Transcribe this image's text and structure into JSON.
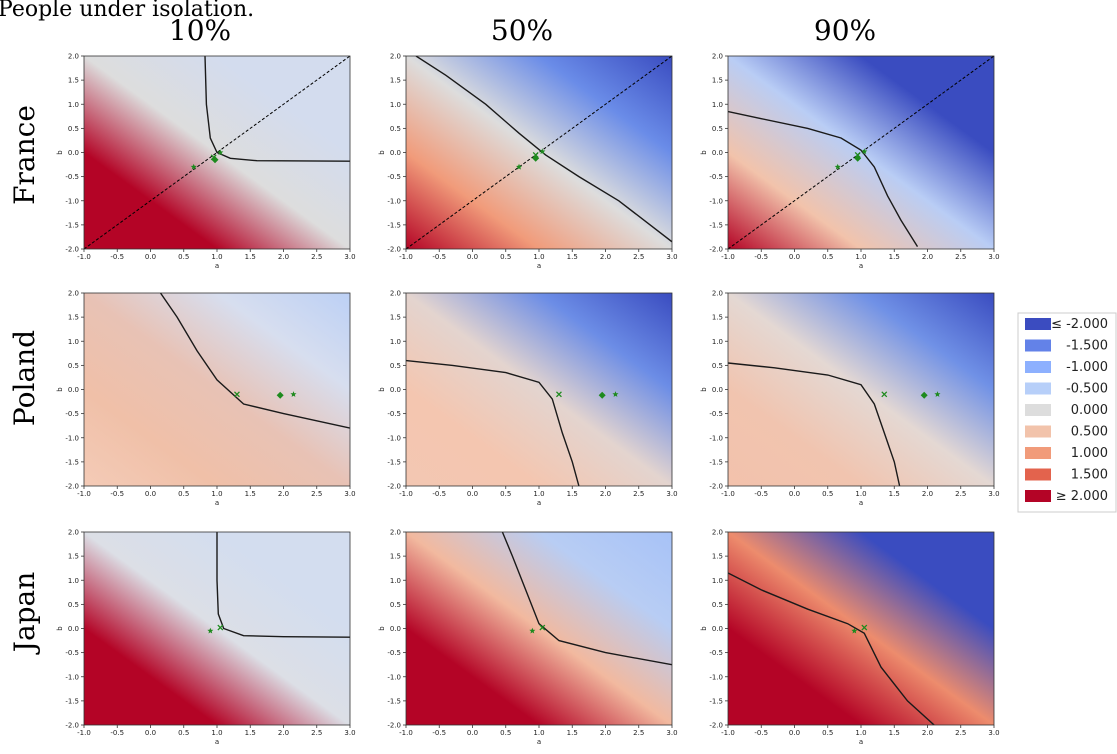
{
  "figure": {
    "heading": "People under isolation.",
    "columns": [
      "10%",
      "50%",
      "90%"
    ],
    "rows": [
      "France",
      "Poland",
      "Japan"
    ],
    "colors": {
      "min": "#3a4cc0",
      "max": "#b40426",
      "mid": "#dddddd",
      "contour": "#1a1a1a",
      "diagonal": "#000000",
      "marker": "#1e8a1e"
    }
  },
  "legend": {
    "items": [
      {
        "label": "≤ -2.000",
        "color": "#3b4cc0"
      },
      {
        "label": "-1.500",
        "color": "#6382e8"
      },
      {
        "label": "-1.000",
        "color": "#8db0fe"
      },
      {
        "label": "-0.500",
        "color": "#b7cff9"
      },
      {
        "label": "0.000",
        "color": "#dddddd"
      },
      {
        "label": "0.500",
        "color": "#f2c3ab"
      },
      {
        "label": "1.000",
        "color": "#f19b7a"
      },
      {
        "label": "1.500",
        "color": "#e3634d"
      },
      {
        "label": "≥ 2.000",
        "color": "#b40426"
      }
    ]
  },
  "chart_data": [
    {
      "type": "heatmap",
      "row": "France",
      "column": "10%",
      "xlabel": "a",
      "ylabel": "b",
      "xlim": [
        -1,
        3
      ],
      "ylim": [
        -2,
        2
      ],
      "x_ticks": [
        "-1.0",
        "-0.5",
        "0.0",
        "0.5",
        "1.0",
        "1.5",
        "2.0",
        "2.5",
        "3.0"
      ],
      "y_ticks": [
        "-2.0",
        "-1.5",
        "-1.0",
        "-0.5",
        "0.0",
        "0.5",
        "1.0",
        "1.5",
        "2.0"
      ],
      "diagonal": true,
      "contour": [
        [
          0.82,
          2.0
        ],
        [
          0.84,
          1.0
        ],
        [
          0.9,
          0.3
        ],
        [
          1.0,
          0.0
        ],
        [
          1.2,
          -0.12
        ],
        [
          1.6,
          -0.17
        ],
        [
          3.0,
          -0.18
        ]
      ],
      "markers": [
        {
          "x": 0.65,
          "y": -0.3,
          "symbol": "star"
        },
        {
          "x": 0.95,
          "y": -0.1,
          "symbol": "x"
        },
        {
          "x": 0.97,
          "y": -0.15,
          "symbol": "diamond"
        },
        {
          "x": 1.05,
          "y": 0.0,
          "symbol": "star"
        }
      ]
    },
    {
      "type": "heatmap",
      "row": "France",
      "column": "50%",
      "xlabel": "a",
      "ylabel": "b",
      "xlim": [
        -1,
        3
      ],
      "ylim": [
        -2,
        2
      ],
      "x_ticks": [
        "-1.0",
        "-0.5",
        "0.0",
        "0.5",
        "1.0",
        "1.5",
        "2.0",
        "2.5",
        "3.0"
      ],
      "y_ticks": [
        "-2.0",
        "-1.5",
        "-1.0",
        "-0.5",
        "0.0",
        "0.5",
        "1.0",
        "1.5",
        "2.0"
      ],
      "diagonal": true,
      "contour": [
        [
          -0.85,
          2.0
        ],
        [
          -0.4,
          1.6
        ],
        [
          0.2,
          1.0
        ],
        [
          0.7,
          0.4
        ],
        [
          1.1,
          -0.05
        ],
        [
          1.6,
          -0.5
        ],
        [
          2.2,
          -1.0
        ],
        [
          3.0,
          -1.85
        ]
      ],
      "markers": [
        {
          "x": 0.7,
          "y": -0.3,
          "symbol": "star"
        },
        {
          "x": 0.95,
          "y": -0.05,
          "symbol": "x"
        },
        {
          "x": 0.95,
          "y": -0.12,
          "symbol": "diamond"
        },
        {
          "x": 1.05,
          "y": 0.02,
          "symbol": "star"
        }
      ]
    },
    {
      "type": "heatmap",
      "row": "France",
      "column": "90%",
      "xlabel": "a",
      "ylabel": "b",
      "xlim": [
        -1,
        3
      ],
      "ylim": [
        -2,
        2
      ],
      "x_ticks": [
        "-1.0",
        "-0.5",
        "0.0",
        "0.5",
        "1.0",
        "1.5",
        "2.0",
        "2.5",
        "3.0"
      ],
      "y_ticks": [
        "-2.0",
        "-1.5",
        "-1.0",
        "-0.5",
        "0.0",
        "0.5",
        "1.0",
        "1.5",
        "2.0"
      ],
      "diagonal": true,
      "contour": [
        [
          -1.0,
          0.85
        ],
        [
          -0.5,
          0.7
        ],
        [
          0.2,
          0.5
        ],
        [
          0.7,
          0.3
        ],
        [
          1.0,
          0.05
        ],
        [
          1.2,
          -0.3
        ],
        [
          1.4,
          -0.9
        ],
        [
          1.6,
          -1.4
        ],
        [
          1.85,
          -1.95
        ]
      ],
      "markers": [
        {
          "x": 0.65,
          "y": -0.3,
          "symbol": "star"
        },
        {
          "x": 0.95,
          "y": -0.05,
          "symbol": "x"
        },
        {
          "x": 0.95,
          "y": -0.12,
          "symbol": "diamond"
        },
        {
          "x": 1.05,
          "y": 0.02,
          "symbol": "star"
        }
      ]
    },
    {
      "type": "heatmap",
      "row": "Poland",
      "column": "10%",
      "xlabel": "a",
      "ylabel": "b",
      "xlim": [
        -1,
        3
      ],
      "ylim": [
        -2,
        2
      ],
      "x_ticks": [
        "-1.0",
        "-0.5",
        "0.0",
        "0.5",
        "1.0",
        "1.5",
        "2.0",
        "2.5",
        "3.0"
      ],
      "y_ticks": [
        "-2.0",
        "-1.5",
        "-1.0",
        "-0.5",
        "0.0",
        "0.5",
        "1.0",
        "1.5",
        "2.0"
      ],
      "diagonal": false,
      "contour": [
        [
          0.15,
          2.0
        ],
        [
          0.4,
          1.5
        ],
        [
          0.7,
          0.8
        ],
        [
          1.0,
          0.2
        ],
        [
          1.4,
          -0.3
        ],
        [
          2.0,
          -0.5
        ],
        [
          3.0,
          -0.8
        ]
      ],
      "markers": [
        {
          "x": 1.3,
          "y": -0.1,
          "symbol": "x"
        },
        {
          "x": 1.95,
          "y": -0.12,
          "symbol": "diamond"
        },
        {
          "x": 2.15,
          "y": -0.1,
          "symbol": "star"
        }
      ]
    },
    {
      "type": "heatmap",
      "row": "Poland",
      "column": "50%",
      "xlabel": "a",
      "ylabel": "b",
      "xlim": [
        -1,
        3
      ],
      "ylim": [
        -2,
        2
      ],
      "x_ticks": [
        "-1.0",
        "-0.5",
        "0.0",
        "0.5",
        "1.0",
        "1.5",
        "2.0",
        "2.5",
        "3.0"
      ],
      "y_ticks": [
        "-2.0",
        "-1.5",
        "-1.0",
        "-0.5",
        "0.0",
        "0.5",
        "1.0",
        "1.5",
        "2.0"
      ],
      "diagonal": false,
      "contour": [
        [
          -1.0,
          0.6
        ],
        [
          -0.3,
          0.5
        ],
        [
          0.5,
          0.35
        ],
        [
          1.0,
          0.15
        ],
        [
          1.2,
          -0.2
        ],
        [
          1.35,
          -0.9
        ],
        [
          1.5,
          -1.5
        ],
        [
          1.6,
          -2.0
        ]
      ],
      "markers": [
        {
          "x": 1.3,
          "y": -0.1,
          "symbol": "x"
        },
        {
          "x": 1.95,
          "y": -0.12,
          "symbol": "diamond"
        },
        {
          "x": 2.15,
          "y": -0.1,
          "symbol": "star"
        }
      ]
    },
    {
      "type": "heatmap",
      "row": "Poland",
      "column": "90%",
      "xlabel": "a",
      "ylabel": "b",
      "xlim": [
        -1,
        3
      ],
      "ylim": [
        -2,
        2
      ],
      "x_ticks": [
        "-1.0",
        "-0.5",
        "0.0",
        "0.5",
        "1.0",
        "1.5",
        "2.0",
        "2.5",
        "3.0"
      ],
      "y_ticks": [
        "-2.0",
        "-1.5",
        "-1.0",
        "-0.5",
        "0.0",
        "0.5",
        "1.0",
        "1.5",
        "2.0"
      ],
      "diagonal": false,
      "contour": [
        [
          -1.0,
          0.55
        ],
        [
          -0.3,
          0.45
        ],
        [
          0.5,
          0.3
        ],
        [
          1.0,
          0.1
        ],
        [
          1.2,
          -0.3
        ],
        [
          1.35,
          -0.9
        ],
        [
          1.5,
          -1.5
        ],
        [
          1.58,
          -2.0
        ]
      ],
      "markers": [
        {
          "x": 1.35,
          "y": -0.1,
          "symbol": "x"
        },
        {
          "x": 1.95,
          "y": -0.12,
          "symbol": "diamond"
        },
        {
          "x": 2.15,
          "y": -0.1,
          "symbol": "star"
        }
      ]
    },
    {
      "type": "heatmap",
      "row": "Japan",
      "column": "10%",
      "xlabel": "a",
      "ylabel": "b",
      "xlim": [
        -1,
        3
      ],
      "ylim": [
        -2,
        2
      ],
      "x_ticks": [
        "-1.0",
        "-0.5",
        "0.0",
        "0.5",
        "1.0",
        "1.5",
        "2.0",
        "2.5",
        "3.0"
      ],
      "y_ticks": [
        "-2.0",
        "-1.5",
        "-1.0",
        "-0.5",
        "0.0",
        "0.5",
        "1.0",
        "1.5",
        "2.0"
      ],
      "diagonal": false,
      "contour": [
        [
          1.0,
          2.0
        ],
        [
          1.0,
          1.0
        ],
        [
          1.02,
          0.3
        ],
        [
          1.1,
          0.0
        ],
        [
          1.4,
          -0.15
        ],
        [
          2.0,
          -0.17
        ],
        [
          3.0,
          -0.18
        ]
      ],
      "markers": [
        {
          "x": 0.9,
          "y": -0.05,
          "symbol": "star"
        },
        {
          "x": 1.05,
          "y": 0.02,
          "symbol": "x"
        }
      ]
    },
    {
      "type": "heatmap",
      "row": "Japan",
      "column": "50%",
      "xlabel": "a",
      "ylabel": "b",
      "xlim": [
        -1,
        3
      ],
      "ylim": [
        -2,
        2
      ],
      "x_ticks": [
        "-1.0",
        "-0.5",
        "0.0",
        "0.5",
        "1.0",
        "1.5",
        "2.0",
        "2.5",
        "3.0"
      ],
      "y_ticks": [
        "-2.0",
        "-1.5",
        "-1.0",
        "-0.5",
        "0.0",
        "0.5",
        "1.0",
        "1.5",
        "2.0"
      ],
      "diagonal": false,
      "contour": [
        [
          0.45,
          2.0
        ],
        [
          0.6,
          1.5
        ],
        [
          0.8,
          0.8
        ],
        [
          1.0,
          0.1
        ],
        [
          1.3,
          -0.25
        ],
        [
          2.0,
          -0.5
        ],
        [
          3.0,
          -0.75
        ]
      ],
      "markers": [
        {
          "x": 0.9,
          "y": -0.05,
          "symbol": "star"
        },
        {
          "x": 1.05,
          "y": 0.02,
          "symbol": "x"
        }
      ]
    },
    {
      "type": "heatmap",
      "row": "Japan",
      "column": "90%",
      "xlabel": "a",
      "ylabel": "b",
      "xlim": [
        -1,
        3
      ],
      "ylim": [
        -2,
        2
      ],
      "x_ticks": [
        "-1.0",
        "-0.5",
        "0.0",
        "0.5",
        "1.0",
        "1.5",
        "2.0",
        "2.5",
        "3.0"
      ],
      "y_ticks": [
        "-2.0",
        "-1.5",
        "-1.0",
        "-0.5",
        "0.0",
        "0.5",
        "1.0",
        "1.5",
        "2.0"
      ],
      "diagonal": false,
      "contour": [
        [
          -1.0,
          1.15
        ],
        [
          -0.5,
          0.8
        ],
        [
          0.2,
          0.4
        ],
        [
          0.8,
          0.1
        ],
        [
          1.05,
          -0.1
        ],
        [
          1.3,
          -0.8
        ],
        [
          1.7,
          -1.5
        ],
        [
          2.1,
          -2.0
        ]
      ],
      "markers": [
        {
          "x": 0.9,
          "y": -0.05,
          "symbol": "star"
        },
        {
          "x": 1.05,
          "y": 0.02,
          "symbol": "x"
        }
      ]
    }
  ]
}
